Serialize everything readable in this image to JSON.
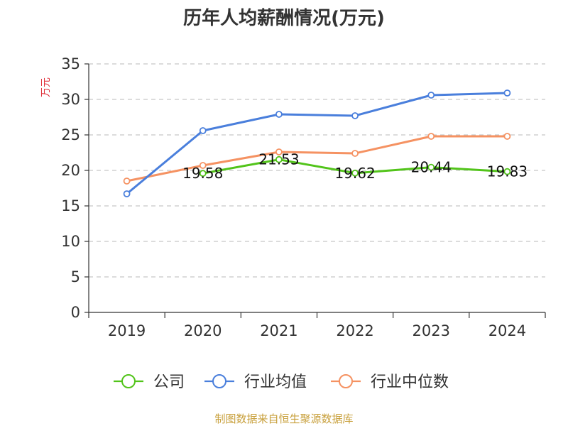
{
  "chart_data": {
    "type": "line",
    "title": "历年人均薪酬情况(万元)",
    "ylabel": "万元",
    "xlabel": "",
    "categories": [
      "2019",
      "2020",
      "2021",
      "2022",
      "2023",
      "2024"
    ],
    "ylim": [
      0,
      35
    ],
    "yticks": [
      0,
      5,
      10,
      15,
      20,
      25,
      30,
      35
    ],
    "grid": true,
    "legend_position": "bottom",
    "series": [
      {
        "name": "公司",
        "color": "#52c41a",
        "values": [
          null,
          19.58,
          21.53,
          19.62,
          20.44,
          19.83
        ],
        "labels": [
          null,
          "19.58",
          "21.53",
          "19.62",
          "20.44",
          "19.83"
        ]
      },
      {
        "name": "行业均值",
        "color": "#4a7fdc",
        "values": [
          16.7,
          25.6,
          27.9,
          27.7,
          30.6,
          30.9
        ]
      },
      {
        "name": "行业中位数",
        "color": "#f59262",
        "values": [
          18.5,
          20.7,
          22.6,
          22.4,
          24.8,
          24.8
        ]
      }
    ]
  },
  "source": "制图数据来自恒生聚源数据库"
}
